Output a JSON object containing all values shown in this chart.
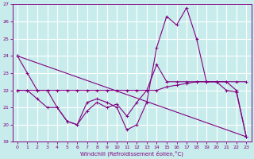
{
  "xlabel": "Windchill (Refroidissement éolien,°C)",
  "background_color": "#c8ecec",
  "grid_color": "#ffffff",
  "line_color": "#800080",
  "ylim": [
    19,
    27
  ],
  "xlim": [
    0,
    23
  ],
  "yticks": [
    19,
    20,
    21,
    22,
    23,
    24,
    25,
    26,
    27
  ],
  "xticks": [
    0,
    1,
    2,
    3,
    4,
    5,
    6,
    7,
    8,
    9,
    10,
    11,
    12,
    13,
    14,
    15,
    16,
    17,
    18,
    19,
    20,
    21,
    22,
    23
  ],
  "series": [
    {
      "x": [
        0,
        1,
        2,
        3,
        4,
        5,
        6,
        7,
        8,
        9,
        10,
        11,
        12,
        13,
        14,
        15,
        16,
        17,
        18,
        19,
        20,
        21,
        22,
        23
      ],
      "y": [
        24.0,
        23.0,
        22.0,
        22.0,
        21.0,
        20.2,
        20.0,
        21.3,
        21.5,
        21.3,
        21.0,
        19.7,
        20.0,
        21.3,
        24.5,
        26.3,
        25.8,
        26.8,
        25.0,
        22.5,
        22.5,
        22.0,
        21.9,
        19.3
      ]
    },
    {
      "x": [
        0,
        1,
        2,
        3,
        4,
        5,
        6,
        7,
        8,
        9,
        10,
        11,
        12,
        13,
        14,
        15,
        16,
        17,
        18,
        19,
        20,
        21,
        22,
        23
      ],
      "y": [
        22.0,
        22.0,
        22.0,
        22.0,
        22.0,
        22.0,
        22.0,
        22.0,
        22.0,
        22.0,
        22.0,
        22.0,
        22.0,
        22.0,
        22.0,
        22.2,
        22.3,
        22.4,
        22.5,
        22.5,
        22.5,
        22.5,
        22.5,
        22.5
      ]
    },
    {
      "x": [
        0,
        23
      ],
      "y": [
        24.0,
        19.3
      ]
    },
    {
      "x": [
        0,
        1,
        2,
        3,
        4,
        5,
        6,
        7,
        8,
        9,
        10,
        11,
        12,
        13,
        14,
        15,
        16,
        17,
        18,
        19,
        20,
        21,
        22,
        23
      ],
      "y": [
        22.0,
        22.0,
        21.5,
        21.0,
        21.0,
        20.2,
        20.0,
        20.8,
        21.3,
        21.0,
        21.2,
        20.5,
        21.3,
        22.0,
        23.5,
        22.5,
        22.5,
        22.5,
        22.5,
        22.5,
        22.5,
        22.5,
        22.0,
        19.3
      ]
    }
  ]
}
